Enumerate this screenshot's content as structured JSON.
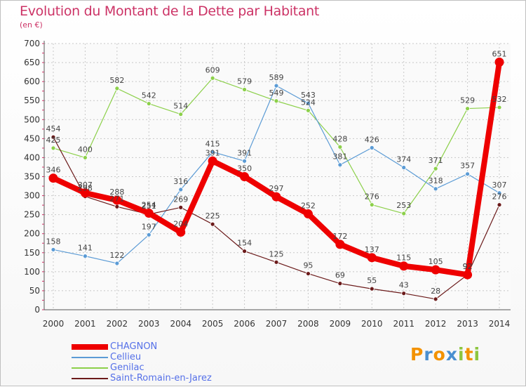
{
  "title": "Evolution du Montant de la Dette par Habitant",
  "subtitle": "(en €)",
  "logo": {
    "text": "Proxiti",
    "letters": [
      "P",
      "r",
      "o",
      "x",
      "i",
      "t",
      "i"
    ],
    "colors": [
      "#f39200",
      "#4a8fd0",
      "#f39200",
      "#4a8fd0",
      "#8dc63f",
      "#f39200",
      "#8dc63f"
    ]
  },
  "chart_data": {
    "type": "line",
    "title": "Evolution du Montant de la Dette par Habitant",
    "subtitle": "(en €)",
    "x": [
      "2000",
      "2001",
      "2002",
      "2003",
      "2004",
      "2005",
      "2006",
      "2007",
      "2008",
      "2009",
      "2010",
      "2011",
      "2012",
      "2013",
      "2014"
    ],
    "ylim": [
      0,
      700
    ],
    "yticks": [
      0,
      50,
      100,
      150,
      200,
      250,
      300,
      350,
      400,
      450,
      500,
      550,
      600,
      650,
      700
    ],
    "grid": true,
    "legend_position": "bottom-left",
    "series": [
      {
        "name": "CHAGNON",
        "color": "#ee0000",
        "values": [
          346,
          307,
          288,
          254,
          204,
          391,
          350,
          297,
          252,
          172,
          137,
          115,
          105,
          92,
          651
        ]
      },
      {
        "name": "Cellieu",
        "color": "#5b9bd5",
        "values": [
          158,
          141,
          122,
          197,
          316,
          415,
          391,
          589,
          543,
          381,
          426,
          374,
          318,
          357,
          307
        ]
      },
      {
        "name": "Genilac",
        "color": "#8cd04a",
        "values": [
          425,
          400,
          582,
          542,
          514,
          609,
          579,
          549,
          524,
          428,
          276,
          253,
          371,
          529,
          532
        ]
      },
      {
        "name": "Saint-Romain-en-Jarez",
        "color": "#6b1a1a",
        "values": [
          454,
          298,
          271,
          251,
          269,
          225,
          154,
          125,
          95,
          69,
          55,
          43,
          28,
          92,
          276
        ]
      }
    ],
    "data_labels": {
      "CHAGNON": [
        "346",
        "307",
        "288",
        "254",
        "204",
        "391",
        "350",
        "297",
        "252",
        "172",
        "137",
        "115",
        "105",
        "92",
        "651"
      ],
      "Cellieu": [
        "158",
        "141",
        "122",
        "197",
        "316",
        "415",
        "391",
        "589",
        "543",
        "381",
        "426",
        "374",
        "318",
        "357",
        "307"
      ],
      "Genilac": [
        "425",
        "400",
        "582",
        "542",
        "514",
        "609",
        "579",
        "549",
        "524",
        "428",
        "276",
        "253",
        "371",
        "529",
        "532"
      ],
      "Saint-Romain-en-Jarez": [
        "454",
        "298",
        "271",
        "251",
        "269",
        "225",
        "154",
        "125",
        "95",
        "69",
        "55",
        "43",
        "28",
        "92",
        "276"
      ]
    }
  }
}
